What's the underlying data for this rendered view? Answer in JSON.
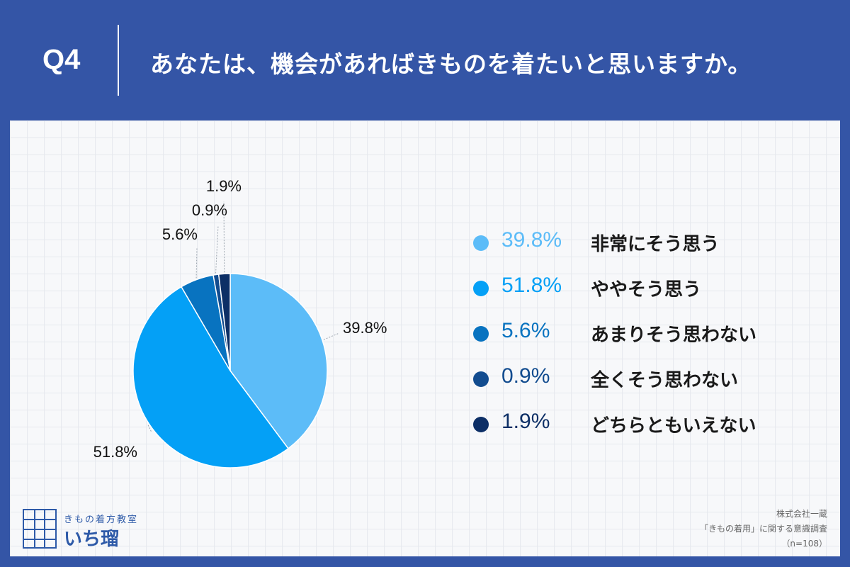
{
  "header": {
    "question_number": "Q4",
    "question_text": "あなたは、機会があればきものを着たいと思いますか。"
  },
  "chart_data": {
    "type": "pie",
    "slices": [
      {
        "label": "非常にそう思う",
        "value": 39.8,
        "display": "39.8%",
        "color": "#5cbcf8"
      },
      {
        "label": "ややそう思う",
        "value": 51.8,
        "display": "51.8%",
        "color": "#04a0f6"
      },
      {
        "label": "あまりそう思わない",
        "value": 5.6,
        "display": "5.6%",
        "color": "#0873c0"
      },
      {
        "label": "全くそう思わない",
        "value": 0.9,
        "display": "0.9%",
        "color": "#124c8f"
      },
      {
        "label": "どちらともいえない",
        "value": 1.9,
        "display": "1.9%",
        "color": "#0d2f66"
      }
    ],
    "legend_position": "right",
    "start_angle": "12 o'clock, clockwise"
  },
  "logo": {
    "subtitle": "きもの着方教室",
    "name": "いち瑠"
  },
  "credit": {
    "company": "株式会社一蔵",
    "survey": "「きもの着用」に関する意識調査",
    "sample": "（n=108）"
  }
}
